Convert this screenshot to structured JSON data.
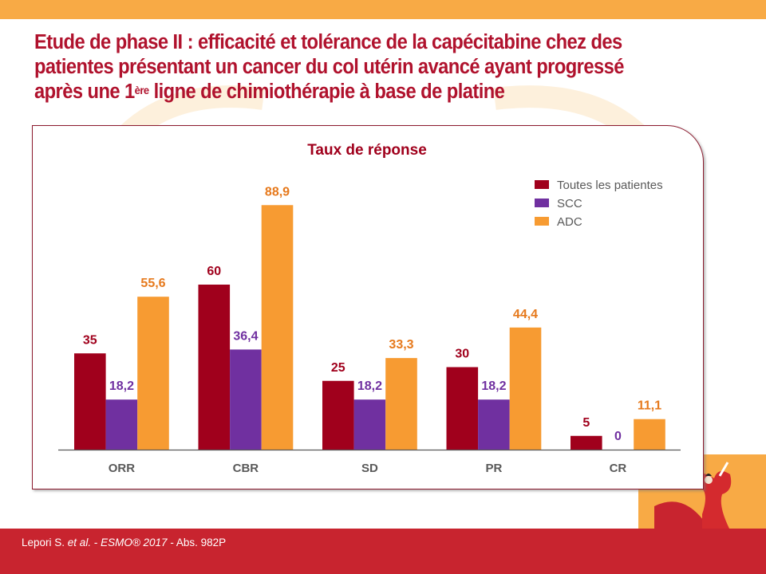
{
  "slide": {
    "title_line1": "Etude de phase II : efficacité et tolérance de la capécitabine chez des",
    "title_line2": "patientes présentant un cancer du col utérin avancé ayant progressé",
    "title_line3_pre": "après une 1",
    "title_line3_sup": "ère",
    "title_line3_post": " ligne de chimiothérapie à base de platine",
    "footer": {
      "author": "Lepori S. ",
      "etal": "et al.",
      "sep1": " - ",
      "congress": "ESMO® 2017",
      "sep2": " - Abs. 982P"
    }
  },
  "colors": {
    "brand_red": "#b0122d",
    "top_bar": "#f8aa45",
    "footer_red": "#c8242f"
  },
  "chart_data": {
    "type": "bar",
    "title": "Taux de réponse",
    "xlabel": "",
    "ylabel": "",
    "ylim": [
      0,
      100
    ],
    "grid": false,
    "legend_position": "top-right",
    "categories": [
      "ORR",
      "CBR",
      "SD",
      "PR",
      "CR"
    ],
    "series": [
      {
        "name": "Toutes les patientes",
        "color": "#a0001c",
        "label_color": "#a0001c",
        "values": [
          35,
          60,
          25,
          30,
          5
        ],
        "labels": [
          "35",
          "60",
          "25",
          "30",
          "5"
        ]
      },
      {
        "name": "SCC",
        "color": "#7030a0",
        "label_color": "#7030a0",
        "values": [
          18.2,
          36.4,
          18.2,
          18.2,
          0
        ],
        "labels": [
          "18,2",
          "36,4",
          "18,2",
          "18,2",
          "0"
        ]
      },
      {
        "name": "ADC",
        "color": "#f79b32",
        "label_color": "#e6791c",
        "values": [
          55.6,
          88.9,
          33.3,
          44.4,
          11.1
        ],
        "labels": [
          "55,6",
          "88,9",
          "33,3",
          "44,4",
          "11,1"
        ]
      }
    ]
  }
}
